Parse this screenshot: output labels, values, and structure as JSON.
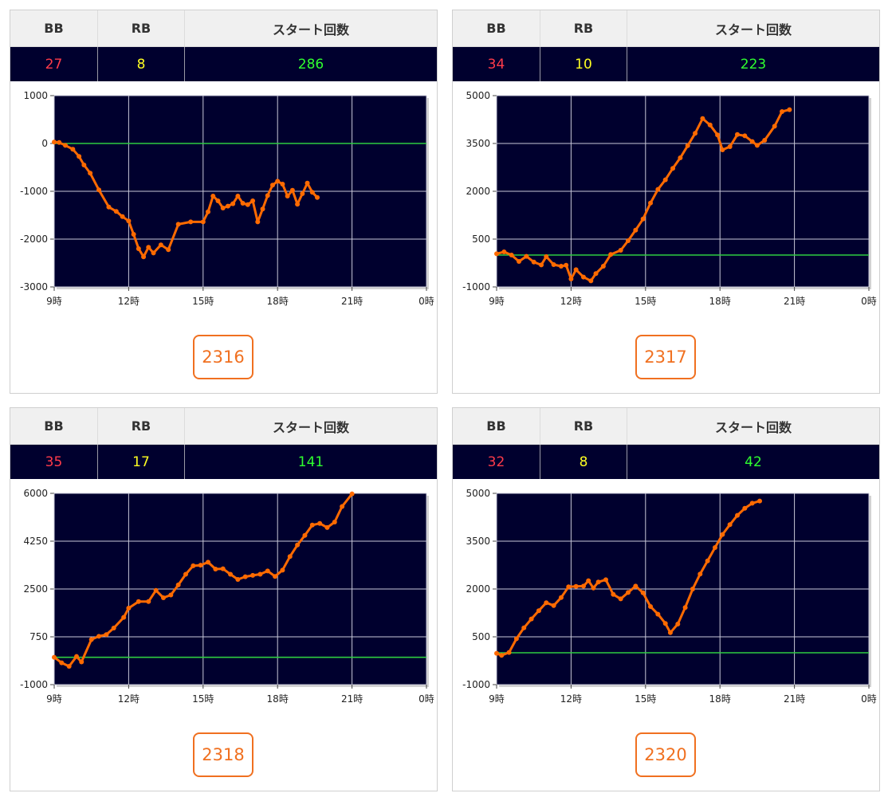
{
  "labels": {
    "bb": "BB",
    "rb": "RB",
    "start": "スタート回数"
  },
  "colors": {
    "background": "#00002e",
    "grid": "#c8c8d8",
    "baseline": "#2ecc40",
    "line": "#ff6a00",
    "bb": "#ff3b4a",
    "rb": "#ffff22",
    "start": "#2fff2f",
    "accent": "#f07020"
  },
  "chart_data": [
    {
      "type": "line",
      "machine": "2316",
      "bb": "27",
      "rb": "8",
      "start": "286",
      "x_ticks": [
        "9時",
        "12時",
        "15時",
        "18時",
        "21時",
        "0時"
      ],
      "xlim": [
        9,
        24
      ],
      "ylim": [
        -3000,
        1000
      ],
      "y_ticks": [
        1000,
        0,
        -1000,
        -2000,
        -3000
      ],
      "grid": true,
      "series": [
        {
          "points": [
            [
              9.0,
              30
            ],
            [
              9.2,
              20
            ],
            [
              9.45,
              -40
            ],
            [
              9.75,
              -120
            ],
            [
              10.0,
              -270
            ],
            [
              10.2,
              -450
            ],
            [
              10.45,
              -620
            ],
            [
              10.8,
              -970
            ],
            [
              11.2,
              -1330
            ],
            [
              11.5,
              -1420
            ],
            [
              11.75,
              -1530
            ],
            [
              12.0,
              -1620
            ],
            [
              12.2,
              -1900
            ],
            [
              12.4,
              -2200
            ],
            [
              12.6,
              -2370
            ],
            [
              12.8,
              -2170
            ],
            [
              13.0,
              -2290
            ],
            [
              13.3,
              -2120
            ],
            [
              13.6,
              -2220
            ],
            [
              14.0,
              -1690
            ],
            [
              14.5,
              -1640
            ],
            [
              15.0,
              -1640
            ],
            [
              15.2,
              -1430
            ],
            [
              15.4,
              -1100
            ],
            [
              15.6,
              -1200
            ],
            [
              15.8,
              -1350
            ],
            [
              16.0,
              -1310
            ],
            [
              16.2,
              -1260
            ],
            [
              16.4,
              -1100
            ],
            [
              16.6,
              -1250
            ],
            [
              16.8,
              -1280
            ],
            [
              17.0,
              -1200
            ],
            [
              17.2,
              -1640
            ],
            [
              17.4,
              -1370
            ],
            [
              17.6,
              -1090
            ],
            [
              17.8,
              -870
            ],
            [
              18.0,
              -790
            ],
            [
              18.2,
              -850
            ],
            [
              18.4,
              -1100
            ],
            [
              18.6,
              -980
            ],
            [
              18.8,
              -1270
            ],
            [
              19.0,
              -1050
            ],
            [
              19.2,
              -830
            ],
            [
              19.4,
              -1020
            ],
            [
              19.6,
              -1130
            ]
          ]
        }
      ]
    },
    {
      "type": "line",
      "machine": "2317",
      "bb": "34",
      "rb": "10",
      "start": "223",
      "x_ticks": [
        "9時",
        "12時",
        "15時",
        "18時",
        "21時",
        "0時"
      ],
      "xlim": [
        9,
        24
      ],
      "ylim": [
        -1000,
        5000
      ],
      "y_ticks": [
        5000,
        3500,
        2000,
        500,
        -1000
      ],
      "grid": true,
      "series": [
        {
          "points": [
            [
              9.0,
              40
            ],
            [
              9.3,
              100
            ],
            [
              9.6,
              0
            ],
            [
              9.9,
              -200
            ],
            [
              10.2,
              -40
            ],
            [
              10.5,
              -220
            ],
            [
              10.8,
              -310
            ],
            [
              11.0,
              -50
            ],
            [
              11.3,
              -300
            ],
            [
              11.6,
              -350
            ],
            [
              11.8,
              -320
            ],
            [
              12.0,
              -750
            ],
            [
              12.2,
              -460
            ],
            [
              12.5,
              -690
            ],
            [
              12.8,
              -810
            ],
            [
              13.0,
              -580
            ],
            [
              13.3,
              -350
            ],
            [
              13.6,
              20
            ],
            [
              14.0,
              150
            ],
            [
              14.3,
              450
            ],
            [
              14.6,
              780
            ],
            [
              14.9,
              1130
            ],
            [
              15.2,
              1630
            ],
            [
              15.5,
              2060
            ],
            [
              15.8,
              2360
            ],
            [
              16.1,
              2720
            ],
            [
              16.4,
              3050
            ],
            [
              16.7,
              3430
            ],
            [
              17.0,
              3820
            ],
            [
              17.3,
              4280
            ],
            [
              17.6,
              4080
            ],
            [
              17.9,
              3770
            ],
            [
              18.1,
              3300
            ],
            [
              18.4,
              3400
            ],
            [
              18.7,
              3780
            ],
            [
              19.0,
              3740
            ],
            [
              19.3,
              3560
            ],
            [
              19.5,
              3440
            ],
            [
              19.8,
              3600
            ],
            [
              20.2,
              4040
            ],
            [
              20.5,
              4500
            ],
            [
              20.8,
              4560
            ]
          ]
        }
      ]
    },
    {
      "type": "line",
      "machine": "2318",
      "bb": "35",
      "rb": "17",
      "start": "141",
      "x_ticks": [
        "9時",
        "12時",
        "15時",
        "18時",
        "21時",
        "0時"
      ],
      "xlim": [
        9,
        24
      ],
      "ylim": [
        -1000,
        6000
      ],
      "y_ticks": [
        6000,
        4250,
        2500,
        750,
        -1000
      ],
      "grid": true,
      "series": [
        {
          "points": [
            [
              9.0,
              0
            ],
            [
              9.3,
              -200
            ],
            [
              9.6,
              -330
            ],
            [
              9.9,
              30
            ],
            [
              10.1,
              -170
            ],
            [
              10.5,
              650
            ],
            [
              10.8,
              770
            ],
            [
              11.1,
              830
            ],
            [
              11.4,
              1070
            ],
            [
              11.8,
              1460
            ],
            [
              12.0,
              1800
            ],
            [
              12.4,
              2040
            ],
            [
              12.8,
              2040
            ],
            [
              13.1,
              2450
            ],
            [
              13.4,
              2180
            ],
            [
              13.7,
              2280
            ],
            [
              14.0,
              2650
            ],
            [
              14.3,
              3040
            ],
            [
              14.6,
              3350
            ],
            [
              14.9,
              3370
            ],
            [
              15.2,
              3480
            ],
            [
              15.5,
              3230
            ],
            [
              15.8,
              3240
            ],
            [
              16.1,
              3040
            ],
            [
              16.4,
              2850
            ],
            [
              16.7,
              2950
            ],
            [
              17.0,
              3000
            ],
            [
              17.3,
              3040
            ],
            [
              17.6,
              3160
            ],
            [
              17.9,
              2960
            ],
            [
              18.2,
              3190
            ],
            [
              18.5,
              3690
            ],
            [
              18.8,
              4110
            ],
            [
              19.1,
              4460
            ],
            [
              19.4,
              4840
            ],
            [
              19.7,
              4900
            ],
            [
              20.0,
              4750
            ],
            [
              20.3,
              4950
            ],
            [
              20.6,
              5520
            ],
            [
              21.0,
              5980
            ]
          ]
        }
      ]
    },
    {
      "type": "line",
      "machine": "2320",
      "bb": "32",
      "rb": "8",
      "start": "42",
      "x_ticks": [
        "9時",
        "12時",
        "15時",
        "18時",
        "21時",
        "0時"
      ],
      "xlim": [
        9,
        24
      ],
      "ylim": [
        -1000,
        5000
      ],
      "y_ticks": [
        5000,
        3500,
        2000,
        500,
        -1000
      ],
      "grid": true,
      "series": [
        {
          "points": [
            [
              9.0,
              -20
            ],
            [
              9.2,
              -80
            ],
            [
              9.5,
              10
            ],
            [
              9.8,
              440
            ],
            [
              10.1,
              780
            ],
            [
              10.4,
              1060
            ],
            [
              10.7,
              1320
            ],
            [
              11.0,
              1570
            ],
            [
              11.3,
              1480
            ],
            [
              11.6,
              1730
            ],
            [
              11.9,
              2070
            ],
            [
              12.2,
              2080
            ],
            [
              12.5,
              2090
            ],
            [
              12.7,
              2260
            ],
            [
              12.9,
              2030
            ],
            [
              13.1,
              2220
            ],
            [
              13.4,
              2290
            ],
            [
              13.7,
              1830
            ],
            [
              14.0,
              1690
            ],
            [
              14.3,
              1890
            ],
            [
              14.6,
              2090
            ],
            [
              14.9,
              1880
            ],
            [
              15.2,
              1450
            ],
            [
              15.5,
              1210
            ],
            [
              15.8,
              920
            ],
            [
              16.0,
              630
            ],
            [
              16.3,
              900
            ],
            [
              16.6,
              1420
            ],
            [
              16.9,
              2000
            ],
            [
              17.2,
              2470
            ],
            [
              17.5,
              2880
            ],
            [
              17.8,
              3300
            ],
            [
              18.1,
              3710
            ],
            [
              18.4,
              4020
            ],
            [
              18.7,
              4310
            ],
            [
              19.0,
              4530
            ],
            [
              19.3,
              4690
            ],
            [
              19.6,
              4760
            ]
          ]
        }
      ]
    }
  ]
}
